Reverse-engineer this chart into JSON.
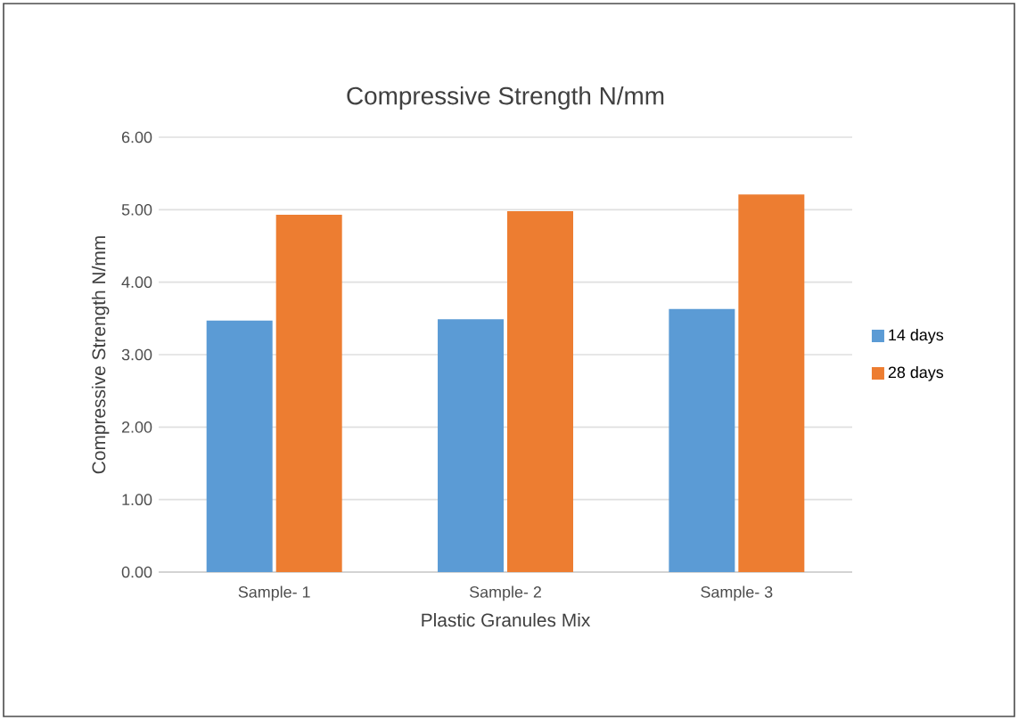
{
  "chart_data": {
    "type": "bar",
    "title": "Compressive Strength N/mm",
    "xlabel": "Plastic Granules Mix",
    "ylabel": "Compressive Strength N/mm",
    "categories": [
      "Sample- 1",
      "Sample- 2",
      "Sample- 3"
    ],
    "series": [
      {
        "name": "14 days",
        "color": "#5b9bd5",
        "values": [
          3.47,
          3.49,
          3.63
        ]
      },
      {
        "name": "28 days",
        "color": "#ed7d31",
        "values": [
          4.93,
          4.98,
          5.21
        ]
      }
    ],
    "ylim": [
      0,
      6
    ],
    "yticks": [
      {
        "value": 0,
        "label": "0.00"
      },
      {
        "value": 1,
        "label": "1.00"
      },
      {
        "value": 2,
        "label": "2.00"
      },
      {
        "value": 3,
        "label": "3.00"
      },
      {
        "value": 4,
        "label": "4.00"
      },
      {
        "value": 5,
        "label": "5.00"
      },
      {
        "value": 6,
        "label": "6.00"
      }
    ],
    "grid": "y",
    "legend": "right"
  }
}
